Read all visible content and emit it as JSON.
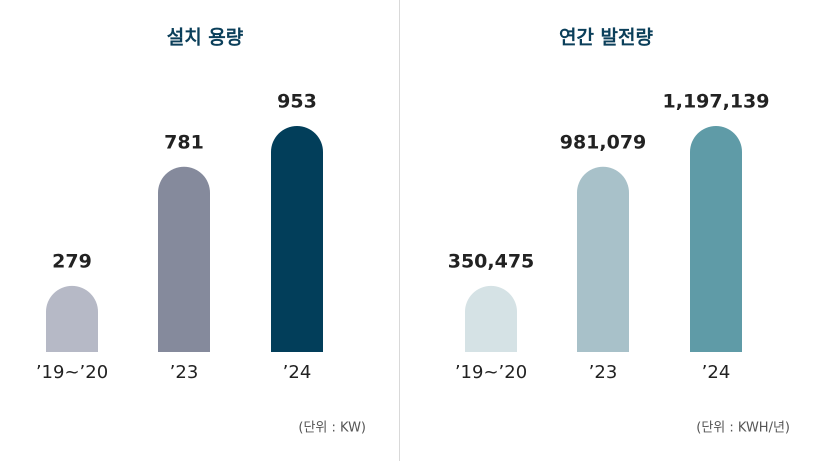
{
  "chart_data": [
    {
      "type": "bar",
      "title": "설치 용량",
      "categories": [
        "’19~’20",
        "’23",
        "’24"
      ],
      "values": [
        279,
        781,
        953
      ],
      "colors": [
        "#b6b9c6",
        "#858a9c",
        "#023e5a"
      ],
      "note": "(단위 : KW)"
    },
    {
      "type": "bar",
      "title": "연간 발전량",
      "categories": [
        "’19~’20",
        "’23",
        "’24"
      ],
      "values": [
        350475,
        981079,
        1197139
      ],
      "value_labels": [
        "350,475",
        "981,079",
        "1,197,139"
      ],
      "colors": [
        "#d5e2e5",
        "#a8c1c9",
        "#5f9ba7"
      ],
      "note": "(단위 : KWH/년)"
    }
  ]
}
